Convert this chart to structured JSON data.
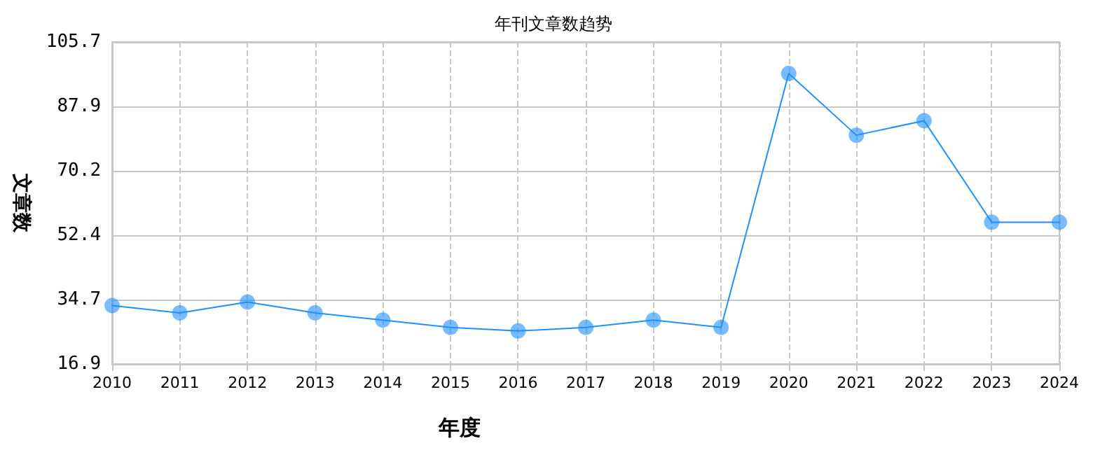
{
  "chart_data": {
    "type": "line",
    "title": "年刊文章数趋势",
    "xlabel": "年度",
    "ylabel": "文章数",
    "categories": [
      "2010",
      "2011",
      "2012",
      "2013",
      "2014",
      "2015",
      "2016",
      "2017",
      "2018",
      "2019",
      "2020",
      "2021",
      "2022",
      "2023",
      "2024"
    ],
    "series": [
      {
        "color": "#1e90ff",
        "values": [
          33,
          31,
          34,
          31,
          29,
          27,
          26,
          27,
          29,
          27,
          97,
          80,
          84,
          56,
          56
        ]
      }
    ],
    "ylim": [
      16.9,
      105.7
    ],
    "yticks": [
      16.9,
      34.7,
      52.4,
      70.2,
      87.9,
      105.7
    ],
    "grid": true,
    "marker": "circle",
    "line_style": "solid"
  }
}
